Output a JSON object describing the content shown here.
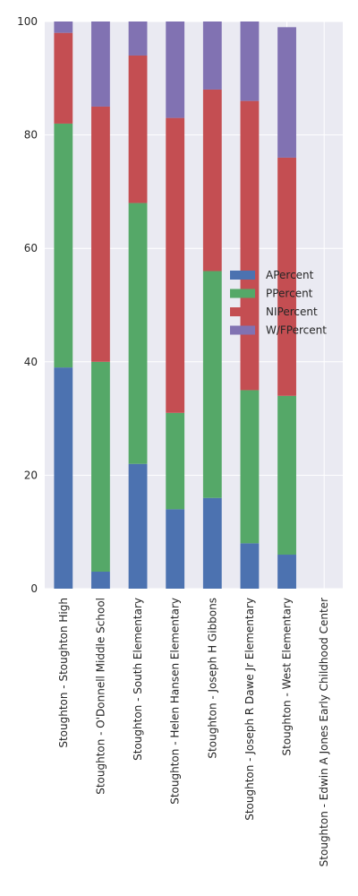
{
  "chart_data": {
    "type": "bar",
    "stacked": true,
    "title": "",
    "xlabel": "",
    "ylabel": "",
    "ylim": [
      0,
      100
    ],
    "yticks": [
      0,
      20,
      40,
      60,
      80,
      100
    ],
    "grid": true,
    "legend_position": "center-right",
    "categories": [
      "Stoughton - Stoughton High",
      "Stoughton - O'Donnell Middle School",
      "Stoughton - South Elementary",
      "Stoughton - Helen Hansen Elementary",
      "Stoughton - Joseph H Gibbons",
      "Stoughton - Joseph R Dawe Jr Elementary",
      "Stoughton - West Elementary",
      "Stoughton - Edwin A Jones Early Childhood Center"
    ],
    "series": [
      {
        "name": "APercent",
        "color": "#4c72b0",
        "values": [
          39,
          3,
          22,
          14,
          16,
          8,
          6,
          0
        ]
      },
      {
        "name": "PPercent",
        "color": "#55a868",
        "values": [
          43,
          37,
          46,
          17,
          40,
          27,
          28,
          0
        ]
      },
      {
        "name": "NIPercent",
        "color": "#c44e52",
        "values": [
          16,
          45,
          26,
          52,
          32,
          51,
          42,
          0
        ]
      },
      {
        "name": "W/FPercent",
        "color": "#8172b2",
        "values": [
          2,
          15,
          6,
          17,
          12,
          14,
          23,
          0
        ]
      }
    ]
  }
}
